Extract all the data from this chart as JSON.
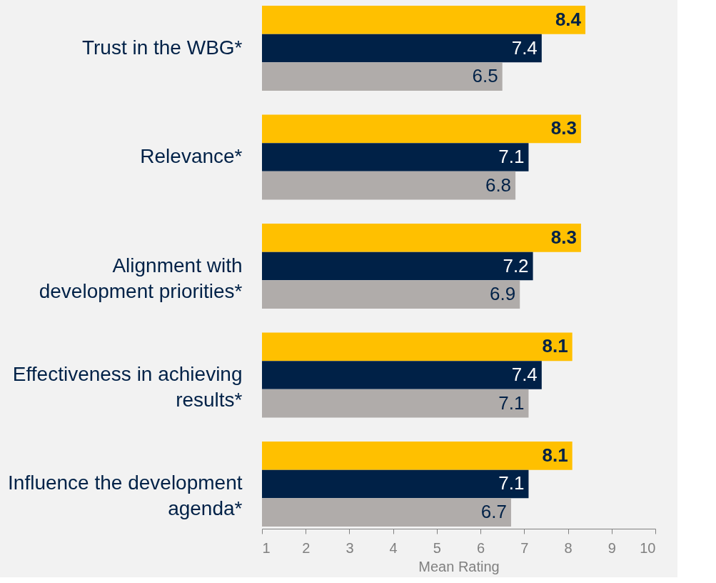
{
  "chart_data": {
    "type": "bar",
    "orientation": "horizontal",
    "xlabel": "Mean Rating",
    "categories": [
      "Trust in the WBG*",
      "Relevance*",
      "Alignment with\ndevelopment priorities*",
      "Effectiveness in achieving\nresults*",
      "Influence the development\nagenda*"
    ],
    "series": [
      {
        "color": "#ffc000",
        "values": [
          8.4,
          8.3,
          8.3,
          8.1,
          8.1
        ]
      },
      {
        "color": "#002147",
        "values": [
          7.4,
          7.1,
          7.2,
          7.4,
          7.1
        ]
      },
      {
        "color": "#b0acaa",
        "values": [
          6.5,
          6.8,
          6.9,
          7.1,
          6.7
        ]
      }
    ],
    "xlim": [
      1,
      10
    ],
    "xticks": [
      1,
      2,
      3,
      4,
      5,
      6,
      7,
      8,
      9,
      10
    ],
    "data_labels": true
  }
}
